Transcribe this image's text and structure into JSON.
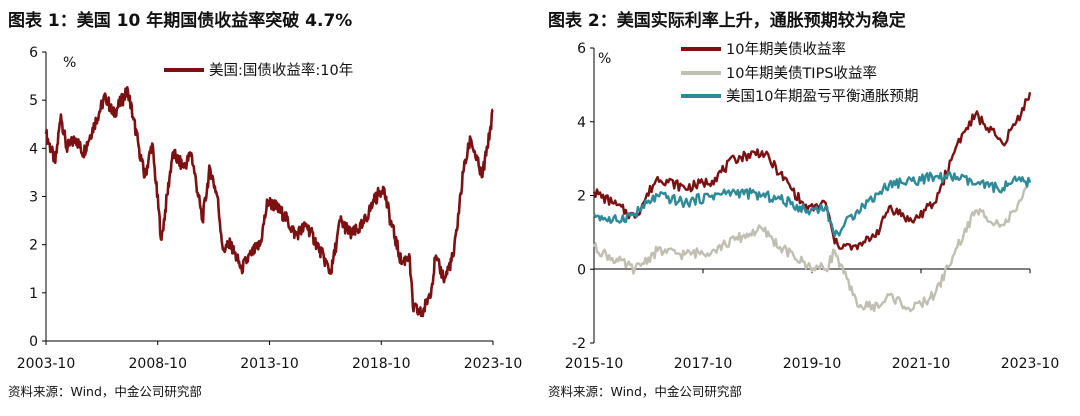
{
  "chart_data": [
    {
      "type": "line",
      "title": "图表 1：美国 10 年期国债收益率突破 4.7%",
      "unit": "%",
      "ylim": [
        0,
        6
      ],
      "yticks": [
        "0",
        "1",
        "2",
        "3",
        "4",
        "5",
        "6"
      ],
      "xticks": [
        "2003-10",
        "2008-10",
        "2013-10",
        "2018-10",
        "2023-10"
      ],
      "xrange": [
        "2003-10",
        "2023-10"
      ],
      "legend_position": "top-center",
      "grid": false,
      "source": "资料来源：Wind，中金公司研究部",
      "series": [
        {
          "name": "美国:国债收益率:10年",
          "color": "#7b1113",
          "x": [
            "2003-10",
            "2004-03",
            "2004-06",
            "2004-09",
            "2005-02",
            "2005-06",
            "2005-12",
            "2006-06",
            "2006-10",
            "2007-06",
            "2007-09",
            "2007-12",
            "2008-03",
            "2008-07",
            "2008-12",
            "2009-06",
            "2009-12",
            "2010-04",
            "2010-10",
            "2011-02",
            "2011-06",
            "2011-09",
            "2012-01",
            "2012-07",
            "2012-12",
            "2013-05",
            "2013-09",
            "2014-01",
            "2014-06",
            "2014-12",
            "2015-06",
            "2016-01",
            "2016-07",
            "2016-12",
            "2017-06",
            "2017-12",
            "2018-06",
            "2018-11",
            "2019-03",
            "2019-09",
            "2020-01",
            "2020-03",
            "2020-08",
            "2021-01",
            "2021-03",
            "2021-08",
            "2022-01",
            "2022-06",
            "2022-10",
            "2023-04",
            "2023-07",
            "2023-10"
          ],
          "values": [
            4.3,
            3.7,
            4.7,
            4.0,
            4.2,
            3.9,
            4.5,
            5.1,
            4.7,
            5.2,
            4.6,
            4.0,
            3.4,
            4.1,
            2.1,
            3.9,
            3.6,
            3.9,
            2.5,
            3.6,
            3.0,
            1.9,
            2.0,
            1.5,
            1.8,
            2.0,
            2.9,
            2.8,
            2.6,
            2.2,
            2.4,
            1.9,
            1.4,
            2.5,
            2.2,
            2.4,
            2.9,
            3.2,
            2.5,
            1.6,
            1.8,
            0.7,
            0.55,
            1.1,
            1.7,
            1.3,
            1.8,
            3.5,
            4.2,
            3.4,
            4.0,
            4.8
          ]
        }
      ]
    },
    {
      "type": "line",
      "title": "图表 2：美国实际利率上升，通胀预期较为稳定",
      "unit": "%",
      "ylim": [
        -2,
        6
      ],
      "yticks": [
        "-2",
        "0",
        "2",
        "4",
        "6"
      ],
      "xticks": [
        "2015-10",
        "2017-10",
        "2019-10",
        "2021-10",
        "2023-10"
      ],
      "xrange": [
        "2015-10",
        "2023-10"
      ],
      "legend_position": "top-center",
      "grid": false,
      "source": "资料来源：Wind，中金公司研究部",
      "series": [
        {
          "name": "10年期美债收益率",
          "color": "#7b1113",
          "x": [
            "2015-10",
            "2016-02",
            "2016-07",
            "2016-12",
            "2017-06",
            "2017-12",
            "2018-05",
            "2018-11",
            "2019-03",
            "2019-09",
            "2020-01",
            "2020-03",
            "2020-08",
            "2021-01",
            "2021-03",
            "2021-08",
            "2022-01",
            "2022-06",
            "2022-10",
            "2023-04",
            "2023-07",
            "2023-10"
          ],
          "values": [
            2.1,
            1.8,
            1.4,
            2.5,
            2.2,
            2.4,
            3.0,
            3.2,
            2.6,
            1.6,
            1.8,
            0.7,
            0.55,
            1.1,
            1.7,
            1.3,
            1.8,
            3.4,
            4.2,
            3.4,
            4.0,
            4.8
          ]
        },
        {
          "name": "10年期美债TIPS收益率",
          "color": "#bfbfb2",
          "x": [
            "2015-10",
            "2016-02",
            "2016-07",
            "2016-12",
            "2017-06",
            "2017-12",
            "2018-05",
            "2018-11",
            "2019-03",
            "2019-09",
            "2020-01",
            "2020-03",
            "2020-08",
            "2021-01",
            "2021-03",
            "2021-08",
            "2022-01",
            "2022-06",
            "2022-10",
            "2023-04",
            "2023-07",
            "2023-10"
          ],
          "values": [
            0.6,
            0.3,
            0.0,
            0.5,
            0.4,
            0.5,
            0.8,
            1.1,
            0.6,
            0.1,
            0.0,
            0.5,
            -1.0,
            -1.0,
            -0.7,
            -1.1,
            -0.7,
            0.6,
            1.6,
            1.2,
            1.6,
            2.4
          ]
        },
        {
          "name": "美国10年期盈亏平衡通胀预期",
          "color": "#2f8a98",
          "x": [
            "2015-10",
            "2016-02",
            "2016-07",
            "2016-12",
            "2017-06",
            "2017-12",
            "2018-05",
            "2018-11",
            "2019-03",
            "2019-09",
            "2020-01",
            "2020-03",
            "2020-08",
            "2021-01",
            "2021-03",
            "2021-08",
            "2022-01",
            "2022-06",
            "2022-10",
            "2023-04",
            "2023-07",
            "2023-10"
          ],
          "values": [
            1.5,
            1.3,
            1.5,
            2.0,
            1.8,
            2.0,
            2.1,
            2.0,
            1.9,
            1.6,
            1.7,
            0.9,
            1.6,
            2.1,
            2.3,
            2.4,
            2.5,
            2.5,
            2.3,
            2.2,
            2.4,
            2.35
          ]
        }
      ]
    }
  ]
}
